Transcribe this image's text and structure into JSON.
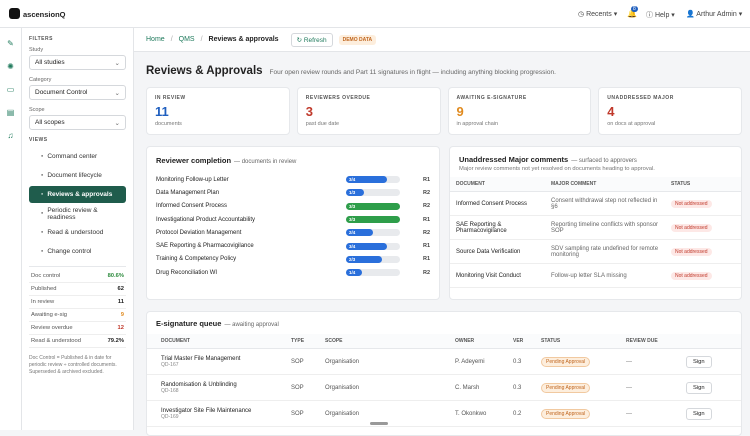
{
  "header": {
    "logo": "ascensionQ",
    "recents": "Recents",
    "badge": "8",
    "help": "Help",
    "user": "Arthur Admin"
  },
  "filters": {
    "title": "FILTERS",
    "fields": [
      {
        "label": "Study",
        "value": "All studies"
      },
      {
        "label": "Category",
        "value": "Document Control"
      },
      {
        "label": "Scope",
        "value": "All scopes"
      }
    ]
  },
  "views": {
    "title": "VIEWS",
    "active": 3,
    "items": [
      "Command center",
      "Document lifecycle",
      "Reviews & approvals",
      "Periodic review & readiness",
      "Read & understood",
      "Change control"
    ]
  },
  "stats": [
    {
      "label": "Doc control",
      "value": "80.6%",
      "color": "#2e8b3e"
    },
    {
      "label": "Published",
      "value": "62",
      "color": "#222"
    },
    {
      "label": "In review",
      "value": "11",
      "color": "#222"
    },
    {
      "label": "Awaiting e-sig",
      "value": "9",
      "color": "#e08a1e"
    },
    {
      "label": "Review overdue",
      "value": "12",
      "color": "#c0392b"
    },
    {
      "label": "Read & understood",
      "value": "79.2%",
      "color": "#222"
    }
  ],
  "note": "Doc Control = Published & in date for periodic review ÷ controlled documents. Superseded & archived excluded.",
  "breadcrumb": {
    "items": [
      "Home",
      "QMS",
      "Reviews & approvals"
    ],
    "refresh": "Refresh",
    "badge": "DEMO DATA"
  },
  "page": {
    "title": "Reviews & Approvals",
    "subtitle": "Four open review rounds and Part 11 signatures in flight — including anything blocking progression."
  },
  "cards": [
    {
      "label": "IN REVIEW",
      "value": 11,
      "sub": "documents",
      "color": "#1f5fbf"
    },
    {
      "label": "REVIEWERS OVERDUE",
      "value": 3,
      "sub": "past due date",
      "color": "#c0392b"
    },
    {
      "label": "AWAITING E-SIGNATURE",
      "value": 9,
      "sub": "in approval chain",
      "color": "#e08a1e"
    },
    {
      "label": "UNADDRESSED MAJOR",
      "value": 4,
      "sub": "on docs at approval",
      "color": "#c0392b"
    }
  ],
  "completion": {
    "title": "Reviewer completion",
    "subtitle": "— documents in review",
    "rows": [
      {
        "name": "Monitoring Follow-up Letter",
        "progress": "3/4",
        "round": "R1",
        "color": "#2a6fdb"
      },
      {
        "name": "Data Management Plan",
        "progress": "1/3",
        "round": "R2",
        "color": "#2a6fdb"
      },
      {
        "name": "Informed Consent Process",
        "progress": "3/3",
        "round": "R2",
        "color": "#2e9e4a"
      },
      {
        "name": "Investigational Product Accountability",
        "progress": "3/3",
        "round": "R1",
        "color": "#2e9e4a"
      },
      {
        "name": "Protocol Deviation Management",
        "progress": "2/4",
        "round": "R2",
        "color": "#2a6fdb"
      },
      {
        "name": "SAE Reporting & Pharmacovigilance",
        "progress": "3/4",
        "round": "R1",
        "color": "#2a6fdb"
      },
      {
        "name": "Training & Competency Policy",
        "progress": "2/3",
        "round": "R1",
        "color": "#2a6fdb"
      },
      {
        "name": "Drug Reconciliation WI",
        "progress": "1/4",
        "round": "R2",
        "color": "#2a6fdb"
      }
    ]
  },
  "comments": {
    "title": "Unaddressed Major comments",
    "subtitle": "— surfaced to approvers",
    "description": "Major review comments not yet resolved on documents heading to approval.",
    "columns": [
      "DOCUMENT",
      "MAJOR COMMENT",
      "STATUS"
    ],
    "rows": [
      [
        "Informed Consent Process",
        "Consent withdrawal step not reflected in §6",
        "Not addressed"
      ],
      [
        "SAE Reporting & Pharmacovigilance",
        "Reporting timeline conflicts with sponsor SOP",
        "Not addressed"
      ],
      [
        "Source Data Verification",
        "SDV sampling rate undefined for remote monitoring",
        "Not addressed"
      ],
      [
        "Monitoring Visit Conduct",
        "Follow-up letter SLA missing",
        "Not addressed"
      ]
    ]
  },
  "esig": {
    "title": "E-signature queue",
    "subtitle": "— awaiting approval",
    "columns": [
      "DOCUMENT",
      "TYPE",
      "SCOPE",
      "OWNER",
      "VER",
      "STATUS",
      "REVIEW DUE"
    ],
    "rows": [
      {
        "name": "Trial Master File Management",
        "id": "QD-167",
        "type": "SOP",
        "scope": "Organisation",
        "owner": "P. Adeyemi",
        "ver": "0.3",
        "status": "Pending Approval",
        "due": "—",
        "action": "Sign"
      },
      {
        "name": "Randomisation & Unblinding",
        "id": "QD-168",
        "type": "SOP",
        "scope": "Organisation",
        "owner": "C. Marsh",
        "ver": "0.3",
        "status": "Pending Approval",
        "due": "—",
        "action": "Sign"
      },
      {
        "name": "Investigator Site File Maintenance",
        "id": "QD-169",
        "type": "SOP",
        "scope": "Organisation",
        "owner": "T. Okonkwo",
        "ver": "0.2",
        "status": "Pending Approval",
        "due": "—",
        "action": "Sign"
      }
    ]
  }
}
